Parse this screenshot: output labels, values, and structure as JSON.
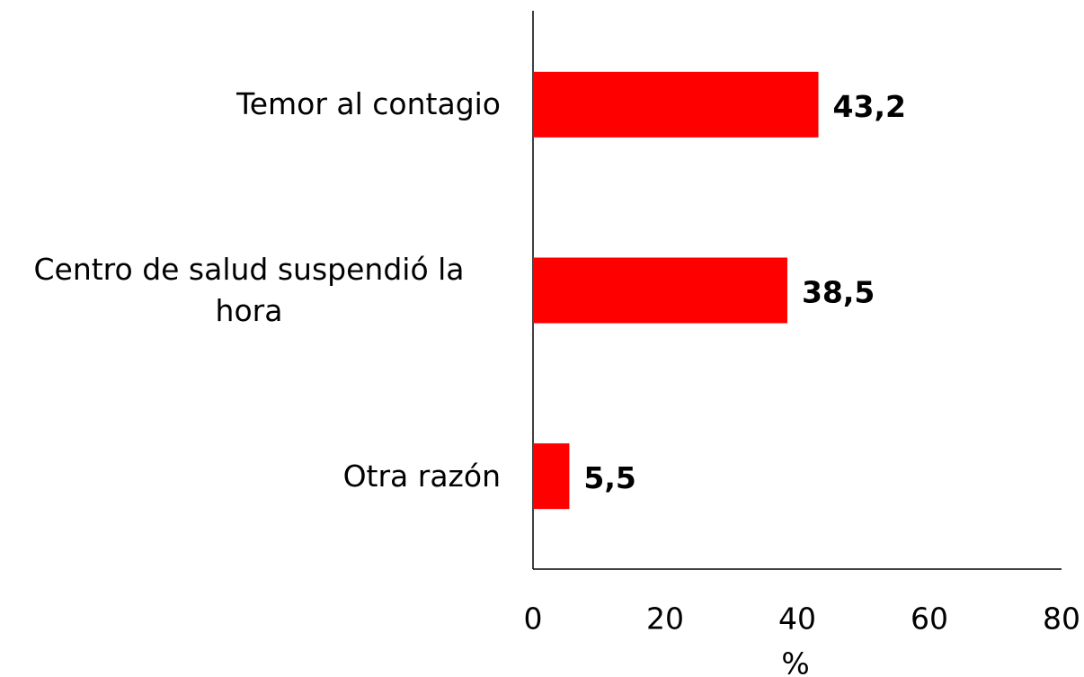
{
  "chart_data": {
    "type": "bar",
    "orientation": "horizontal",
    "categories": [
      "Temor al contagio",
      "Centro de salud suspendió la hora",
      "Otra razón"
    ],
    "values": [
      43.2,
      38.5,
      5.5
    ],
    "value_labels": [
      "43,2",
      "38,5",
      "5,5"
    ],
    "color": "#ff0000",
    "xlabel": "%",
    "xlim": [
      0,
      80
    ],
    "xticks": [
      0,
      20,
      40,
      60,
      80
    ],
    "grid": false
  }
}
